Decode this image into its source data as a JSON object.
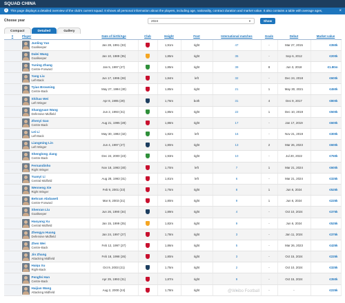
{
  "header": {
    "title": "SQUAD CHINA"
  },
  "info": {
    "icon": "info-icon",
    "text": "This page displays a detailed overview of the club's current squad. It shows all personal information about the players, including age, nationality, contract duration and market value. It also contains a table with average ages,",
    "close": "×"
  },
  "year_filter": {
    "label": "Choose year",
    "value": "2024",
    "button": "Show"
  },
  "tabs": [
    {
      "label": "Compact",
      "active": false
    },
    {
      "label": "Detailed",
      "active": true
    },
    {
      "label": "Gallery",
      "active": false
    }
  ],
  "columns": [
    "#",
    "Player",
    "Date of birth/Age",
    "Club",
    "Height",
    "Foot",
    "International matches",
    "Goals",
    "Debut",
    "Market value"
  ],
  "players": [
    {
      "name": "Junling Yan",
      "position": "Goalkeeper",
      "dob": "Jan 28, 1991 (33)",
      "club_color": "#c8102e",
      "height": "1,91m",
      "foot": "right",
      "matches": "47",
      "goals": "-",
      "debut": "Mar 27, 2015",
      "value": "€350k"
    },
    {
      "name": "Dalei Wang",
      "position": "Goalkeeper",
      "dob": "Jan 10, 1989 (35)",
      "club_color": "#f5a623",
      "height": "1,85m",
      "foot": "right",
      "matches": "35",
      "goals": "-",
      "debut": "Sep 6, 2012",
      "value": "€200k"
    },
    {
      "name": "Yuning Zhang",
      "position": "Centre-Forward",
      "dob": "Jan 5, 1997 (27)",
      "club_color": "#2f8f3a",
      "height": "1,85m",
      "foot": "right",
      "matches": "39",
      "goals": "8",
      "debut": "Jun 3, 2018",
      "value": "€1.80m"
    },
    {
      "name": "Yang Liu",
      "position": "Left-Back",
      "dob": "Jun 17, 1995 (28)",
      "club_color": "#c8102e",
      "height": "1,84m",
      "foot": "left",
      "matches": "32",
      "goals": "-",
      "debut": "Dec 24, 2018",
      "value": "€600k"
    },
    {
      "name": "Tyias Browning",
      "position": "Centre-Back",
      "dob": "May 27, 1994 (30)",
      "club_color": "#c8102e",
      "height": "1,85m",
      "foot": "right",
      "matches": "21",
      "goals": "1",
      "debut": "May 30, 2021",
      "value": "€450k"
    },
    {
      "name": "Shihao Wei",
      "position": "Left Winger",
      "dob": "Apr 8, 1995 (29)",
      "club_color": "#1d3e5f",
      "height": "1,76m",
      "foot": "both",
      "matches": "31",
      "goals": "4",
      "debut": "Dec 9, 2017",
      "value": "€800k"
    },
    {
      "name": "Shangyuan Wang",
      "position": "Defensive Midfield",
      "dob": "Jun 2, 1993 (31)",
      "club_color": "#2f8f3a",
      "height": "1,85m",
      "foot": "right",
      "matches": "22",
      "goals": "1",
      "debut": "Dec 10, 2019",
      "value": "€500k"
    },
    {
      "name": "Zhenyi Gao",
      "position": "Centre-Back",
      "dob": "Aug 21, 1995 (28)",
      "club_color": "#c8102e",
      "height": "1,88m",
      "foot": "right",
      "matches": "17",
      "goals": "-",
      "debut": "Jan 17, 2019",
      "value": "€600k"
    },
    {
      "name": "Lei Li",
      "position": "Left-Back",
      "dob": "May 30, 1992 (32)",
      "club_color": "#2f8f3a",
      "height": "1,82m",
      "foot": "left",
      "matches": "16",
      "goals": "-",
      "debut": "Nov 21, 2019",
      "value": "€300k"
    },
    {
      "name": "Liangming Lin",
      "position": "Left Winger",
      "dob": "Jun 4, 1997 (27)",
      "club_color": "#1d3e5f",
      "height": "1,80m",
      "foot": "right",
      "matches": "13",
      "goals": "2",
      "debut": "Mar 26, 2023",
      "value": "€600k"
    },
    {
      "name": "Shenglong Jiang",
      "position": "Centre-Back",
      "dob": "Dec 24, 2000 (23)",
      "club_color": "#2f8f3a",
      "height": "1,93m",
      "foot": "right",
      "matches": "10",
      "goals": "-",
      "debut": "Jul 20, 2022",
      "value": "€750k"
    },
    {
      "name": "Fernandinho",
      "position": "Right Winger",
      "dob": "Nov 18, 1993 (30)",
      "club_color": "#c8102e",
      "height": "1,70m",
      "foot": "left",
      "matches": "7",
      "goals": "1",
      "debut": "Mar 21, 2024",
      "value": "€600k"
    },
    {
      "name": "Yuanyi Li",
      "position": "Central Midfield",
      "dob": "Aug 28, 1993 (31)",
      "club_color": "#c8102e",
      "height": "1,81m",
      "foot": "left",
      "matches": "6",
      "goals": "-",
      "debut": "Mar 21, 2024",
      "value": "€325k"
    },
    {
      "name": "Wenneng Xie",
      "position": "Right Winger",
      "dob": "Feb 9, 2001 (23)",
      "club_color": "#c8102e",
      "height": "1,75m",
      "foot": "right",
      "matches": "8",
      "goals": "1",
      "debut": "Jun 6, 2024",
      "value": "€525k"
    },
    {
      "name": "Behram Abduweli",
      "position": "Centre-Forward",
      "dob": "Mar 8, 2003 (21)",
      "club_color": "#c8102e",
      "height": "1,80m",
      "foot": "right",
      "matches": "9",
      "goals": "1",
      "debut": "Jun 6, 2024",
      "value": "€225k"
    },
    {
      "name": "Shenran Liu",
      "position": "Goalkeeper",
      "dob": "Jun 26, 1990 (34)",
      "club_color": "#1d3e5f",
      "height": "1,89m",
      "foot": "right",
      "matches": "4",
      "goals": "-",
      "debut": "Oct 10, 2024",
      "value": "€375k"
    },
    {
      "name": "Haoyang Xu",
      "position": "Central Midfield",
      "dob": "Jan 15, 1999 (25)",
      "club_color": "#f5a623",
      "height": "1,82m",
      "foot": "right",
      "matches": "9",
      "goals": "-",
      "debut": "Jun 6, 2024",
      "value": "€525k"
    },
    {
      "name": "Zhengyu Huang",
      "position": "Defensive Midfield",
      "dob": "Jan 24, 1997 (27)",
      "club_color": "#c8102e",
      "height": "1,78m",
      "foot": "right",
      "matches": "3",
      "goals": "-",
      "debut": "Jan 11, 2024",
      "value": "€375k"
    },
    {
      "name": "Zhen Wei",
      "position": "Centre-Back",
      "dob": "Feb 12, 1997 (27)",
      "club_color": "#c8102e",
      "height": "1,86m",
      "foot": "right",
      "matches": "5",
      "goals": "-",
      "debut": "Mar 26, 2023",
      "value": "€425k"
    },
    {
      "name": "Jin Zhang",
      "position": "Attacking Midfield",
      "dob": "Feb 18, 1998 (26)",
      "club_color": "#c8102e",
      "height": "1,80m",
      "foot": "right",
      "matches": "3",
      "goals": "-",
      "debut": "Oct 15, 2024",
      "value": "€225k"
    },
    {
      "name": "Haiqu Xu",
      "position": "Right-Back",
      "dob": "Oct 9, 2003 (21)",
      "club_color": "#1d3e5f",
      "height": "1,75m",
      "foot": "right",
      "matches": "2",
      "goals": "-",
      "debut": "Oct 10, 2024",
      "value": "€325k"
    },
    {
      "name": "Pengfei Han",
      "position": "Centre-Back",
      "dob": "Apr 29, 1993 (31)",
      "club_color": "#c8102e",
      "height": "1,87m",
      "foot": "right",
      "matches": "9",
      "goals": "-",
      "debut": "Oct 15, 2024",
      "value": "€350k"
    },
    {
      "name": "Haijian Wang",
      "position": "Attacking Midfield",
      "dob": "Aug 2, 2000 (24)",
      "club_color": "#c8102e",
      "height": "1,78m",
      "foot": "right",
      "matches": "-",
      "goals": "-",
      "debut": "-",
      "value": "€225k"
    }
  ],
  "watermark": "@Weibo Football"
}
